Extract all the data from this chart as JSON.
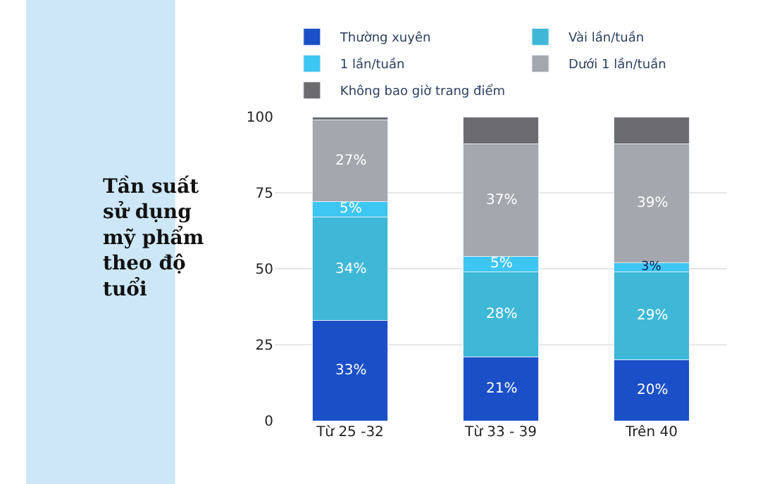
{
  "chart_data": {
    "type": "bar",
    "stacked": true,
    "title": "Tần suất sử dụng mỹ phẩm theo độ tuổi",
    "categories": [
      "Từ 25 -32",
      "Từ 33 - 39",
      "Trên 40"
    ],
    "series": [
      {
        "name": "Thường xuyên",
        "color": "#1a4fc8",
        "values": [
          33,
          21,
          20
        ],
        "value_labels": [
          "33%",
          "21%",
          "20%"
        ]
      },
      {
        "name": "Vài lần/tuần",
        "color": "#3fb8d8",
        "values": [
          34,
          28,
          29
        ],
        "value_labels": [
          "34%",
          "28%",
          "29%"
        ]
      },
      {
        "name": "1 lần/tuần",
        "color": "#3ec6f2",
        "values": [
          5,
          5,
          3
        ],
        "value_labels": [
          "5%",
          "5%",
          "3%"
        ]
      },
      {
        "name": "Dưới 1 lần/tuần",
        "color": "#a4a7ad",
        "values": [
          27,
          37,
          39
        ],
        "value_labels": [
          "27%",
          "37%",
          "39%"
        ]
      },
      {
        "name": "Không bao giờ trang điểm",
        "color": "#6b6b70",
        "values": [
          1,
          9,
          9
        ]
      }
    ],
    "ylim": [
      0,
      100
    ],
    "yticks": [
      0,
      25,
      50,
      75,
      100
    ],
    "grid": "y",
    "legend": "top"
  }
}
